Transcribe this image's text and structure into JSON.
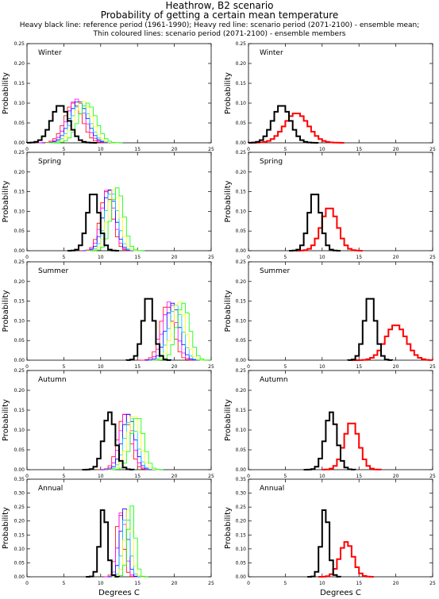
{
  "title": "Heathrow, B2 scenario",
  "subtitle": "Probability of getting a certain mean temperature",
  "caption_line1": "Heavy black line: reference period (1961-1990); Heavy red line: scenario period (2071-2100) - ensemble mean;",
  "caption_line2": "Thin coloured lines: scenario period (2071-2100) - ensemble members",
  "xlabel": "Degrees C",
  "ylabel": "Probability",
  "colors": {
    "reference": "#000000",
    "scenario_mean": "#ff0000",
    "members": [
      "#ff0000",
      "#ff00ff",
      "#0000ff",
      "#00c8ff",
      "#ffff00",
      "#00ff00"
    ]
  },
  "chart_data": [
    {
      "type": "line",
      "season": "Winter",
      "column": "ensemble members",
      "xlim": [
        0,
        25
      ],
      "ylim": [
        0,
        0.25
      ],
      "x_ticks": [
        0,
        5,
        10,
        15,
        20,
        25
      ],
      "y_ticks": [
        0.0,
        0.05,
        0.1,
        0.15,
        0.2,
        0.25
      ],
      "reference": {
        "mean": 4.5,
        "sd": 1.2,
        "peak": 0.095
      },
      "members": [
        {
          "mean": 6.3,
          "sd": 1.2,
          "peak": 0.1
        },
        {
          "mean": 6.7,
          "sd": 1.2,
          "peak": 0.11
        },
        {
          "mean": 7.0,
          "sd": 1.2,
          "peak": 0.105
        },
        {
          "mean": 7.3,
          "sd": 1.2,
          "peak": 0.1
        },
        {
          "mean": 7.6,
          "sd": 1.2,
          "peak": 0.105
        },
        {
          "mean": 8.2,
          "sd": 1.2,
          "peak": 0.1
        }
      ]
    },
    {
      "type": "line",
      "season": "Winter",
      "column": "ensemble mean",
      "xlim": [
        0,
        25
      ],
      "ylim": [
        0,
        0.25
      ],
      "x_ticks": [
        0,
        5,
        10,
        15,
        20,
        25
      ],
      "y_ticks": [
        0.0,
        0.05,
        0.1,
        0.15,
        0.2,
        0.25
      ],
      "reference": {
        "mean": 4.5,
        "sd": 1.2,
        "peak": 0.095
      },
      "scenario_mean": {
        "mean": 6.5,
        "sd": 1.6,
        "peak": 0.075
      }
    },
    {
      "type": "line",
      "season": "Spring",
      "column": "ensemble members",
      "xlim": [
        0,
        25
      ],
      "ylim": [
        0,
        0.25
      ],
      "x_ticks": [
        0,
        5,
        10,
        15,
        20,
        25
      ],
      "y_ticks": [
        0.0,
        0.05,
        0.1,
        0.15,
        0.2,
        0.25
      ],
      "reference": {
        "mean": 9.0,
        "sd": 0.8,
        "peak": 0.15
      },
      "members": [
        {
          "mean": 10.8,
          "sd": 0.85,
          "peak": 0.15
        },
        {
          "mean": 11.0,
          "sd": 0.85,
          "peak": 0.16
        },
        {
          "mean": 11.2,
          "sd": 0.85,
          "peak": 0.155
        },
        {
          "mean": 11.5,
          "sd": 0.85,
          "peak": 0.15
        },
        {
          "mean": 11.8,
          "sd": 0.85,
          "peak": 0.155
        },
        {
          "mean": 12.3,
          "sd": 0.85,
          "peak": 0.16
        }
      ]
    },
    {
      "type": "line",
      "season": "Spring",
      "column": "ensemble mean",
      "xlim": [
        0,
        25
      ],
      "ylim": [
        0,
        0.25
      ],
      "x_ticks": [
        0,
        5,
        10,
        15,
        20,
        25
      ],
      "y_ticks": [
        0.0,
        0.05,
        0.1,
        0.15,
        0.2,
        0.25
      ],
      "reference": {
        "mean": 9.0,
        "sd": 0.8,
        "peak": 0.15
      },
      "scenario_mean": {
        "mean": 11.0,
        "sd": 1.1,
        "peak": 0.11
      }
    },
    {
      "type": "line",
      "season": "Summer",
      "column": "ensemble members",
      "xlim": [
        0,
        25
      ],
      "ylim": [
        0,
        0.25
      ],
      "x_ticks": [
        0,
        5,
        10,
        15,
        20,
        25
      ],
      "y_ticks": [
        0.0,
        0.05,
        0.1,
        0.15,
        0.2,
        0.25
      ],
      "reference": {
        "mean": 16.5,
        "sd": 0.75,
        "peak": 0.165
      },
      "members": [
        {
          "mean": 19.0,
          "sd": 0.9,
          "peak": 0.14
        },
        {
          "mean": 19.4,
          "sd": 0.9,
          "peak": 0.15
        },
        {
          "mean": 19.8,
          "sd": 0.9,
          "peak": 0.145
        },
        {
          "mean": 20.2,
          "sd": 0.9,
          "peak": 0.14
        },
        {
          "mean": 20.6,
          "sd": 0.9,
          "peak": 0.15
        },
        {
          "mean": 21.2,
          "sd": 0.9,
          "peak": 0.145
        }
      ]
    },
    {
      "type": "line",
      "season": "Summer",
      "column": "ensemble mean",
      "xlim": [
        0,
        25
      ],
      "ylim": [
        0,
        0.25
      ],
      "x_ticks": [
        0,
        5,
        10,
        15,
        20,
        25
      ],
      "y_ticks": [
        0.0,
        0.05,
        0.1,
        0.15,
        0.2,
        0.25
      ],
      "reference": {
        "mean": 16.5,
        "sd": 0.75,
        "peak": 0.165
      },
      "scenario_mean": {
        "mean": 20.0,
        "sd": 1.4,
        "peak": 0.09
      }
    },
    {
      "type": "line",
      "season": "Autumn",
      "column": "ensemble members",
      "xlim": [
        0,
        25
      ],
      "ylim": [
        0,
        0.25
      ],
      "x_ticks": [
        0,
        5,
        10,
        15,
        20,
        25
      ],
      "y_ticks": [
        0.0,
        0.05,
        0.1,
        0.15,
        0.2,
        0.25
      ],
      "reference": {
        "mean": 11.2,
        "sd": 0.8,
        "peak": 0.145
      },
      "members": [
        {
          "mean": 13.2,
          "sd": 0.85,
          "peak": 0.14
        },
        {
          "mean": 13.5,
          "sd": 0.85,
          "peak": 0.145
        },
        {
          "mean": 13.8,
          "sd": 0.85,
          "peak": 0.14
        },
        {
          "mean": 14.1,
          "sd": 0.85,
          "peak": 0.13
        },
        {
          "mean": 14.5,
          "sd": 0.85,
          "peak": 0.14
        },
        {
          "mean": 15.0,
          "sd": 0.85,
          "peak": 0.135
        }
      ]
    },
    {
      "type": "line",
      "season": "Autumn",
      "column": "ensemble mean",
      "xlim": [
        0,
        25
      ],
      "ylim": [
        0,
        0.25
      ],
      "x_ticks": [
        0,
        5,
        10,
        15,
        20,
        25
      ],
      "y_ticks": [
        0.0,
        0.05,
        0.1,
        0.15,
        0.2,
        0.25
      ],
      "reference": {
        "mean": 11.2,
        "sd": 0.8,
        "peak": 0.145
      },
      "scenario_mean": {
        "mean": 14.0,
        "sd": 1.0,
        "peak": 0.12
      }
    },
    {
      "type": "line",
      "season": "Annual",
      "column": "ensemble members",
      "xlim": [
        0,
        25
      ],
      "ylim": [
        0,
        0.35
      ],
      "x_ticks": [
        0,
        5,
        10,
        15,
        20,
        25
      ],
      "y_ticks": [
        0.0,
        0.05,
        0.1,
        0.15,
        0.2,
        0.25,
        0.3,
        0.35
      ],
      "reference": {
        "mean": 10.4,
        "sd": 0.5,
        "peak": 0.25
      },
      "members": [
        {
          "mean": 12.6,
          "sd": 0.5,
          "peak": 0.23
        },
        {
          "mean": 12.9,
          "sd": 0.5,
          "peak": 0.24
        },
        {
          "mean": 13.2,
          "sd": 0.5,
          "peak": 0.245
        },
        {
          "mean": 13.5,
          "sd": 0.5,
          "peak": 0.23
        },
        {
          "mean": 13.8,
          "sd": 0.5,
          "peak": 0.24
        },
        {
          "mean": 14.2,
          "sd": 0.5,
          "peak": 0.255
        }
      ]
    },
    {
      "type": "line",
      "season": "Annual",
      "column": "ensemble mean",
      "xlim": [
        0,
        25
      ],
      "ylim": [
        0,
        0.35
      ],
      "x_ticks": [
        0,
        5,
        10,
        15,
        20,
        25
      ],
      "y_ticks": [
        0.0,
        0.05,
        0.1,
        0.15,
        0.2,
        0.25,
        0.3,
        0.35
      ],
      "reference": {
        "mean": 10.4,
        "sd": 0.5,
        "peak": 0.25
      },
      "scenario_mean": {
        "mean": 13.3,
        "sd": 0.9,
        "peak": 0.125
      }
    }
  ]
}
